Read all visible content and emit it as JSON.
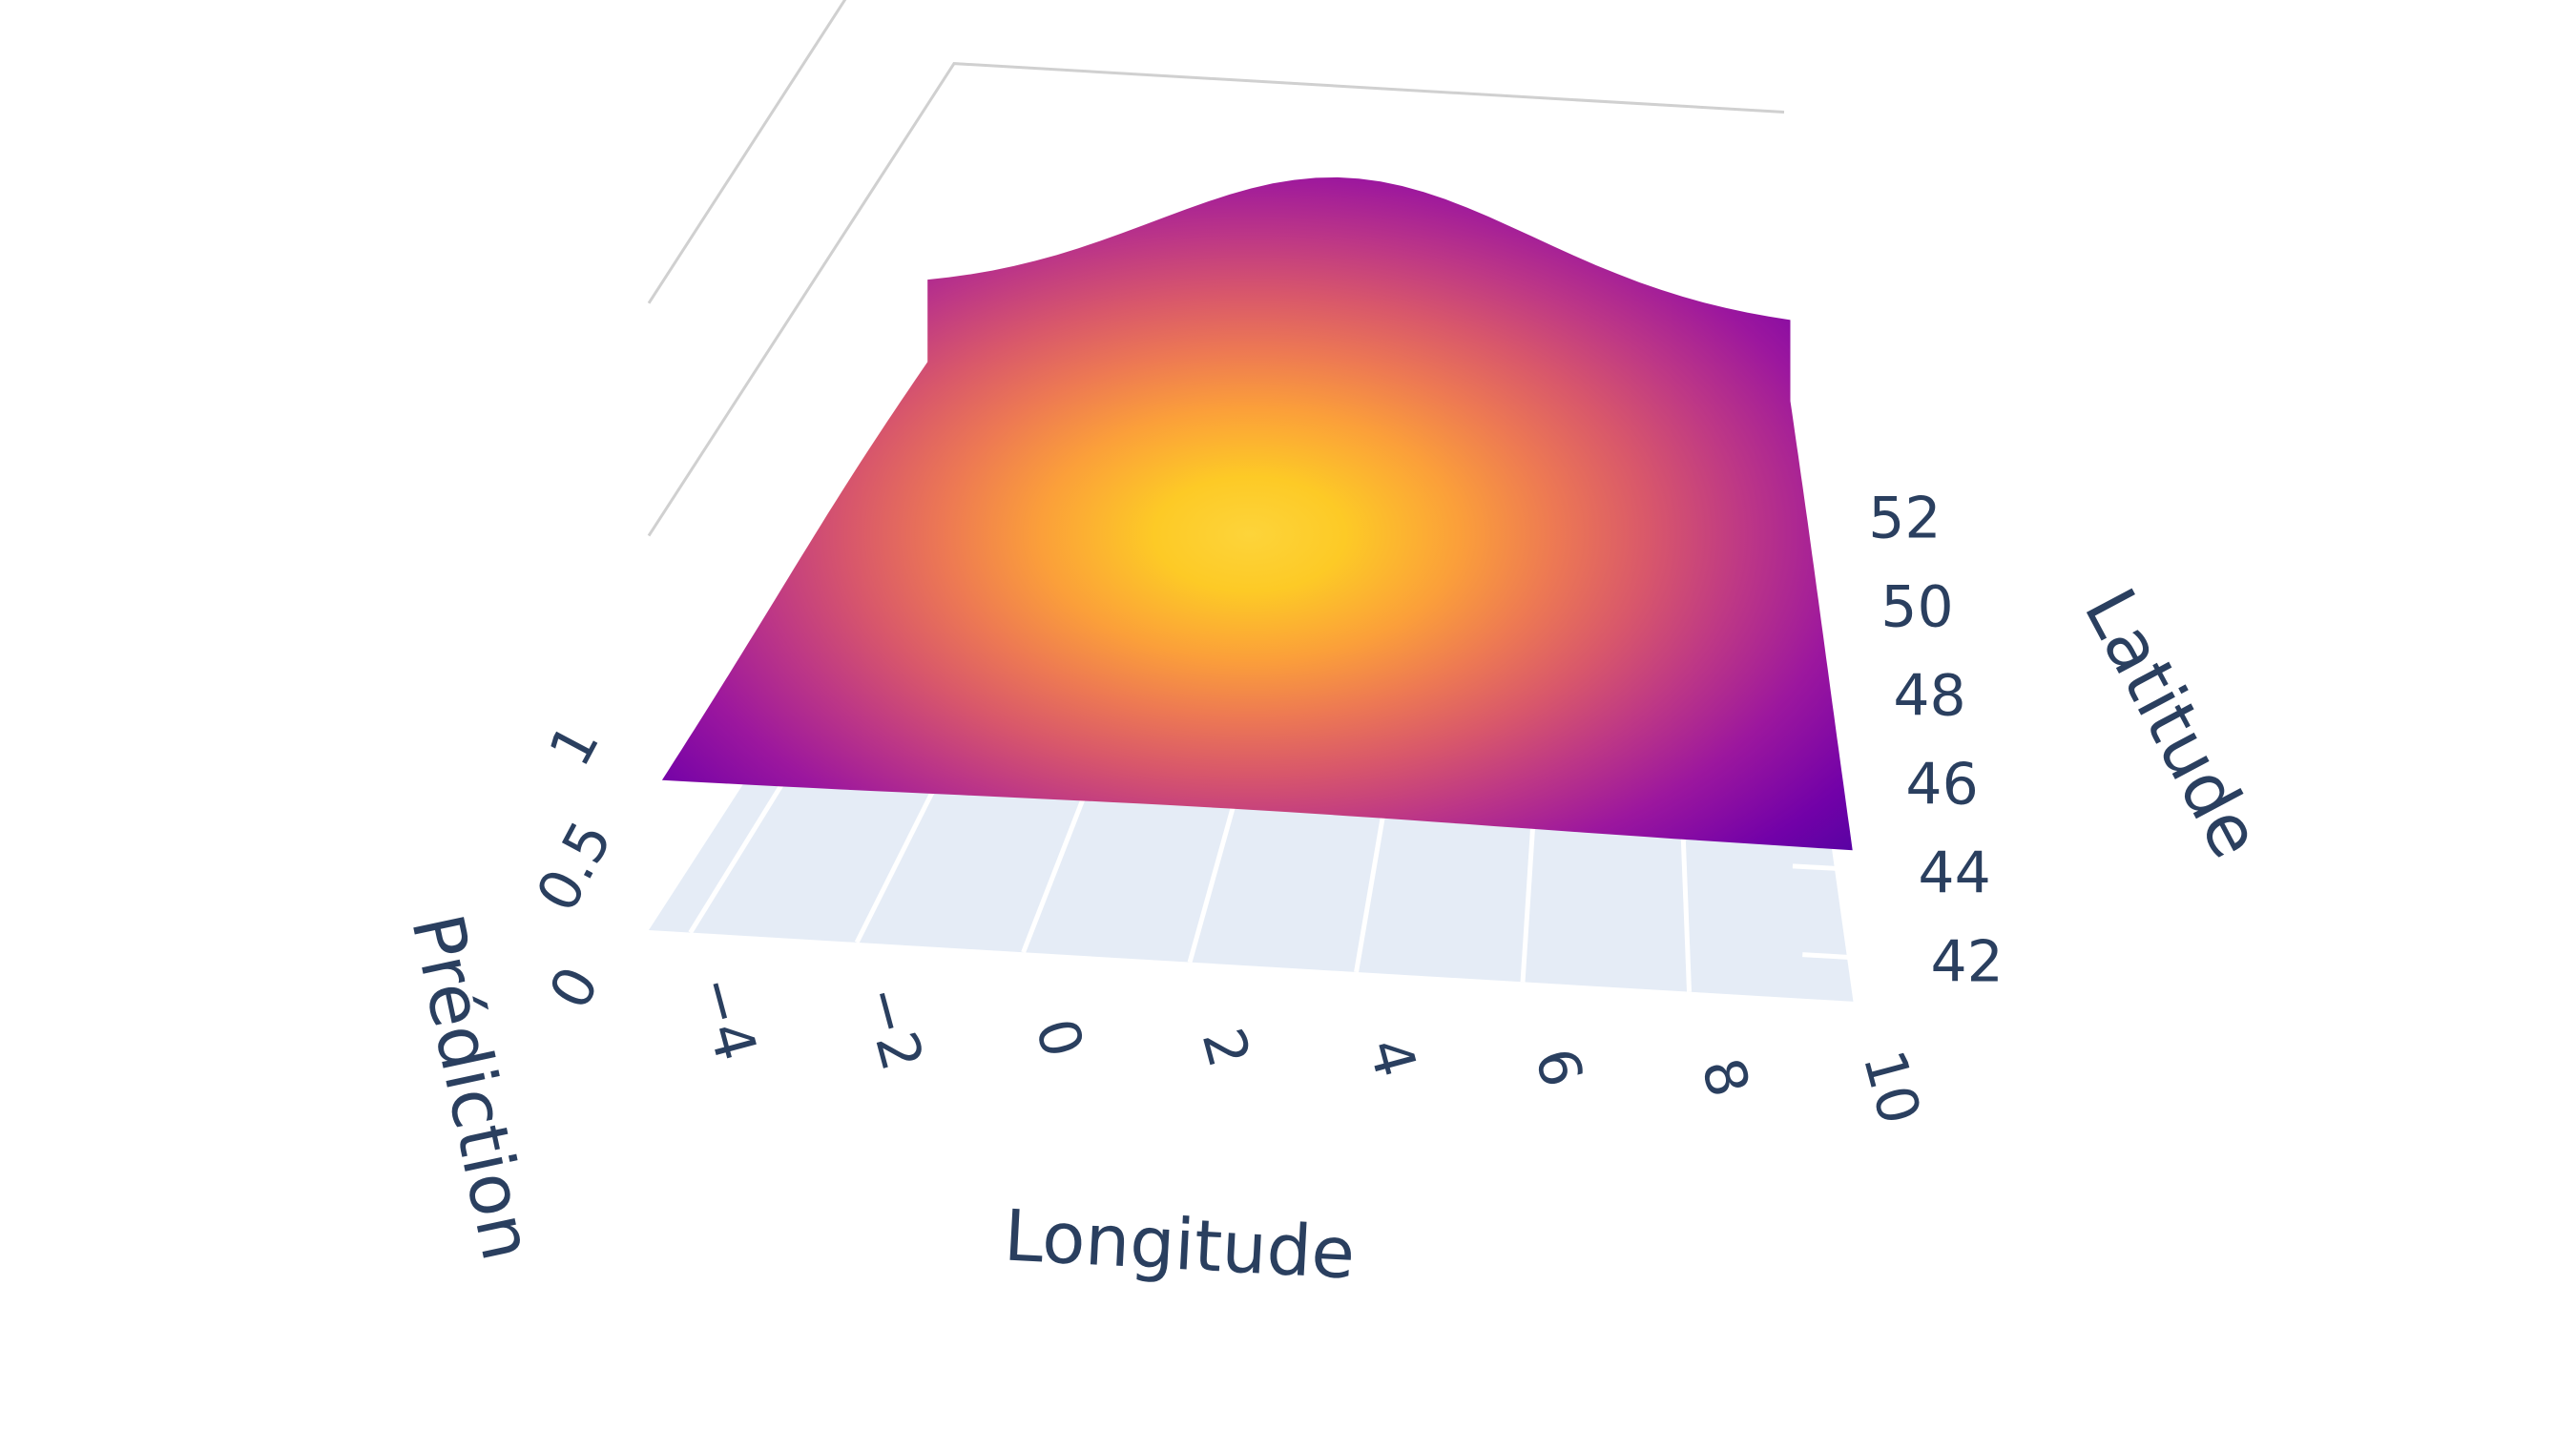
{
  "chart_data": {
    "type": "surface",
    "title": "",
    "colorscale": "plasma",
    "colorscale_stops": [
      "#0d0887",
      "#46039f",
      "#7201a8",
      "#9c179e",
      "#bd3786",
      "#d8576b",
      "#ed7953",
      "#fb9f3a",
      "#fdca26",
      "#f0f921"
    ],
    "xaxis": {
      "title": "Longitude",
      "range": [
        -4.5,
        10
      ],
      "ticks": [
        -4,
        -2,
        0,
        2,
        4,
        6,
        8,
        10
      ],
      "tick_labels": [
        "−4",
        "−2",
        "0",
        "2",
        "4",
        "6",
        "8",
        "10"
      ]
    },
    "yaxis": {
      "title": "Latitude",
      "range": [
        41,
        52.5
      ],
      "ticks": [
        42,
        44,
        46,
        48,
        50,
        52
      ],
      "tick_labels": [
        "42",
        "44",
        "46",
        "48",
        "50",
        "52"
      ]
    },
    "zaxis": {
      "title": "Prédiction",
      "range": [
        0,
        1.4
      ],
      "ticks": [
        0,
        0.5,
        1
      ],
      "tick_labels": [
        "0",
        "0.5",
        "1"
      ]
    },
    "surface": {
      "x": [
        -4.5,
        10
      ],
      "y": [
        41.5,
        51.5
      ],
      "peak": {
        "x": 2.5,
        "y": 49.0,
        "z": 1.0
      },
      "spread": {
        "x": 3.2,
        "y": 3.0
      },
      "base_z": 0.45
    },
    "grid": true,
    "background_color": "#e5ecf6"
  }
}
